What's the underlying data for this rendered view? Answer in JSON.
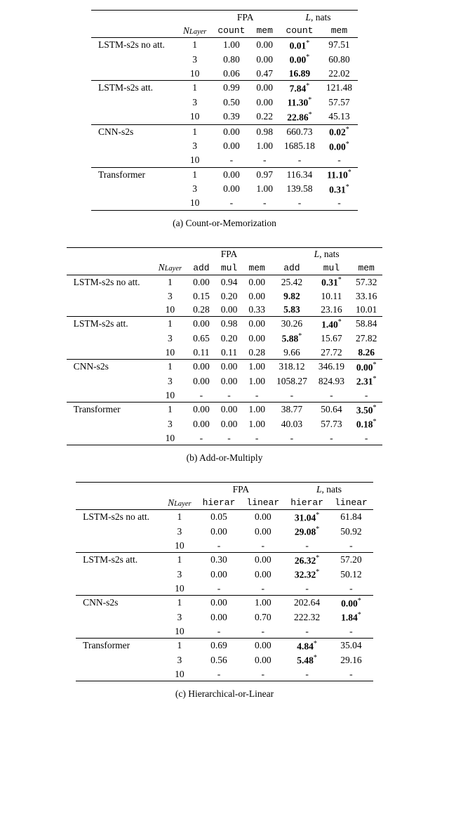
{
  "tableA": {
    "caption": "(a) Count-or-Memorization",
    "header": {
      "nlayer_html": "N_{Layer}",
      "fpa": "FPA",
      "lnats_html": "L, nats",
      "cols": [
        "count",
        "mem",
        "count",
        "mem"
      ]
    },
    "groups": [
      {
        "model": "LSTM-s2s no att.",
        "rows": [
          {
            "n": "1",
            "v": [
              "1.00",
              "0.00",
              {
                "t": "0.01",
                "b": true,
                "s": true
              },
              "97.51"
            ]
          },
          {
            "n": "3",
            "v": [
              "0.80",
              "0.00",
              {
                "t": "0.00",
                "b": true,
                "s": true
              },
              "60.80"
            ]
          },
          {
            "n": "10",
            "v": [
              "0.06",
              "0.47",
              {
                "t": "16.89",
                "b": true
              },
              "22.02"
            ]
          }
        ]
      },
      {
        "model": "LSTM-s2s att.",
        "rows": [
          {
            "n": "1",
            "v": [
              "0.99",
              "0.00",
              {
                "t": "7.84",
                "b": true,
                "s": true
              },
              "121.48"
            ]
          },
          {
            "n": "3",
            "v": [
              "0.50",
              "0.00",
              {
                "t": "11.30",
                "b": true,
                "s": true
              },
              "57.57"
            ]
          },
          {
            "n": "10",
            "v": [
              "0.39",
              "0.22",
              {
                "t": "22.86",
                "b": true,
                "s": true
              },
              "45.13"
            ]
          }
        ]
      },
      {
        "model": "CNN-s2s",
        "rows": [
          {
            "n": "1",
            "v": [
              "0.00",
              "0.98",
              "660.73",
              {
                "t": "0.02",
                "b": true,
                "s": true
              }
            ]
          },
          {
            "n": "3",
            "v": [
              "0.00",
              "1.00",
              "1685.18",
              {
                "t": "0.00",
                "b": true,
                "s": true
              }
            ]
          },
          {
            "n": "10",
            "v": [
              "-",
              "-",
              "-",
              "-"
            ]
          }
        ]
      },
      {
        "model": "Transformer",
        "rows": [
          {
            "n": "1",
            "v": [
              "0.00",
              "0.97",
              "116.34",
              {
                "t": "11.10",
                "b": true,
                "s": true
              }
            ]
          },
          {
            "n": "3",
            "v": [
              "0.00",
              "1.00",
              "139.58",
              {
                "t": "0.31",
                "b": true,
                "s": true
              }
            ]
          },
          {
            "n": "10",
            "v": [
              "-",
              "-",
              "-",
              "-"
            ]
          }
        ]
      }
    ]
  },
  "tableB": {
    "caption": "(b) Add-or-Multiply",
    "header": {
      "fpa": "FPA",
      "lnats_html": "L, nats",
      "cols": [
        "add",
        "mul",
        "mem",
        "add",
        "mul",
        "mem"
      ]
    },
    "groups": [
      {
        "model": "LSTM-s2s no att.",
        "rows": [
          {
            "n": "1",
            "v": [
              "0.00",
              "0.94",
              "0.00",
              "25.42",
              {
                "t": "0.31",
                "b": true,
                "s": true
              },
              "57.32"
            ]
          },
          {
            "n": "3",
            "v": [
              "0.15",
              "0.20",
              "0.00",
              {
                "t": "9.82",
                "b": true
              },
              "10.11",
              "33.16"
            ]
          },
          {
            "n": "10",
            "v": [
              "0.28",
              "0.00",
              "0.33",
              {
                "t": "5.83",
                "b": true
              },
              "23.16",
              "10.01"
            ]
          }
        ]
      },
      {
        "model": "LSTM-s2s att.",
        "rows": [
          {
            "n": "1",
            "v": [
              "0.00",
              "0.98",
              "0.00",
              "30.26",
              {
                "t": "1.40",
                "b": true,
                "s": true
              },
              "58.84"
            ]
          },
          {
            "n": "3",
            "v": [
              "0.65",
              "0.20",
              "0.00",
              {
                "t": "5.88",
                "b": true,
                "s": true
              },
              "15.67",
              "27.82"
            ]
          },
          {
            "n": "10",
            "v": [
              "0.11",
              "0.11",
              "0.28",
              "9.66",
              "27.72",
              {
                "t": "8.26",
                "b": true
              }
            ]
          }
        ]
      },
      {
        "model": "CNN-s2s",
        "rows": [
          {
            "n": "1",
            "v": [
              "0.00",
              "0.00",
              "1.00",
              "318.12",
              "346.19",
              {
                "t": "0.00",
                "b": true,
                "s": true
              }
            ]
          },
          {
            "n": "3",
            "v": [
              "0.00",
              "0.00",
              "1.00",
              "1058.27",
              "824.93",
              {
                "t": "2.31",
                "b": true,
                "s": true
              }
            ]
          },
          {
            "n": "10",
            "v": [
              "-",
              "-",
              "-",
              "-",
              "-",
              "-"
            ]
          }
        ]
      },
      {
        "model": "Transformer",
        "rows": [
          {
            "n": "1",
            "v": [
              "0.00",
              "0.00",
              "1.00",
              "38.77",
              "50.64",
              {
                "t": "3.50",
                "b": true,
                "s": true
              }
            ]
          },
          {
            "n": "3",
            "v": [
              "0.00",
              "0.00",
              "1.00",
              "40.03",
              "57.73",
              {
                "t": "0.18",
                "b": true,
                "s": true
              }
            ]
          },
          {
            "n": "10",
            "v": [
              "-",
              "-",
              "-",
              "-",
              "-",
              "-"
            ]
          }
        ]
      }
    ]
  },
  "tableC": {
    "caption": "(c) Hierarchical-or-Linear",
    "header": {
      "fpa": "FPA",
      "lnats_html": "L, nats",
      "cols": [
        "hierar",
        "linear",
        "hierar",
        "linear"
      ]
    },
    "groups": [
      {
        "model": "LSTM-s2s no att.",
        "rows": [
          {
            "n": "1",
            "v": [
              "0.05",
              "0.00",
              {
                "t": "31.04",
                "b": true,
                "s": true
              },
              "61.84"
            ]
          },
          {
            "n": "3",
            "v": [
              "0.00",
              "0.00",
              {
                "t": "29.08",
                "b": true,
                "s": true
              },
              "50.92"
            ]
          },
          {
            "n": "10",
            "v": [
              "-",
              "-",
              "-",
              "-"
            ]
          }
        ]
      },
      {
        "model": "LSTM-s2s att.",
        "rows": [
          {
            "n": "1",
            "v": [
              "0.30",
              "0.00",
              {
                "t": "26.32",
                "b": true,
                "s": true
              },
              "57.20"
            ]
          },
          {
            "n": "3",
            "v": [
              "0.00",
              "0.00",
              {
                "t": "32.32",
                "b": true,
                "s": true
              },
              "50.12"
            ]
          },
          {
            "n": "10",
            "v": [
              "-",
              "-",
              "-",
              "-"
            ]
          }
        ]
      },
      {
        "model": "CNN-s2s",
        "rows": [
          {
            "n": "1",
            "v": [
              "0.00",
              "1.00",
              "202.64",
              {
                "t": "0.00",
                "b": true,
                "s": true
              }
            ]
          },
          {
            "n": "3",
            "v": [
              "0.00",
              "0.70",
              "222.32",
              {
                "t": "1.84",
                "b": true,
                "s": true
              }
            ]
          },
          {
            "n": "10",
            "v": [
              "-",
              "-",
              "-",
              "-"
            ]
          }
        ]
      },
      {
        "model": "Transformer",
        "rows": [
          {
            "n": "1",
            "v": [
              "0.69",
              "0.00",
              {
                "t": "4.84",
                "b": true,
                "s": true
              },
              "35.04"
            ]
          },
          {
            "n": "3",
            "v": [
              "0.56",
              "0.00",
              {
                "t": "5.48",
                "b": true,
                "s": true
              },
              "29.16"
            ]
          },
          {
            "n": "10",
            "v": [
              "-",
              "-",
              "-",
              "-"
            ]
          }
        ]
      }
    ]
  }
}
